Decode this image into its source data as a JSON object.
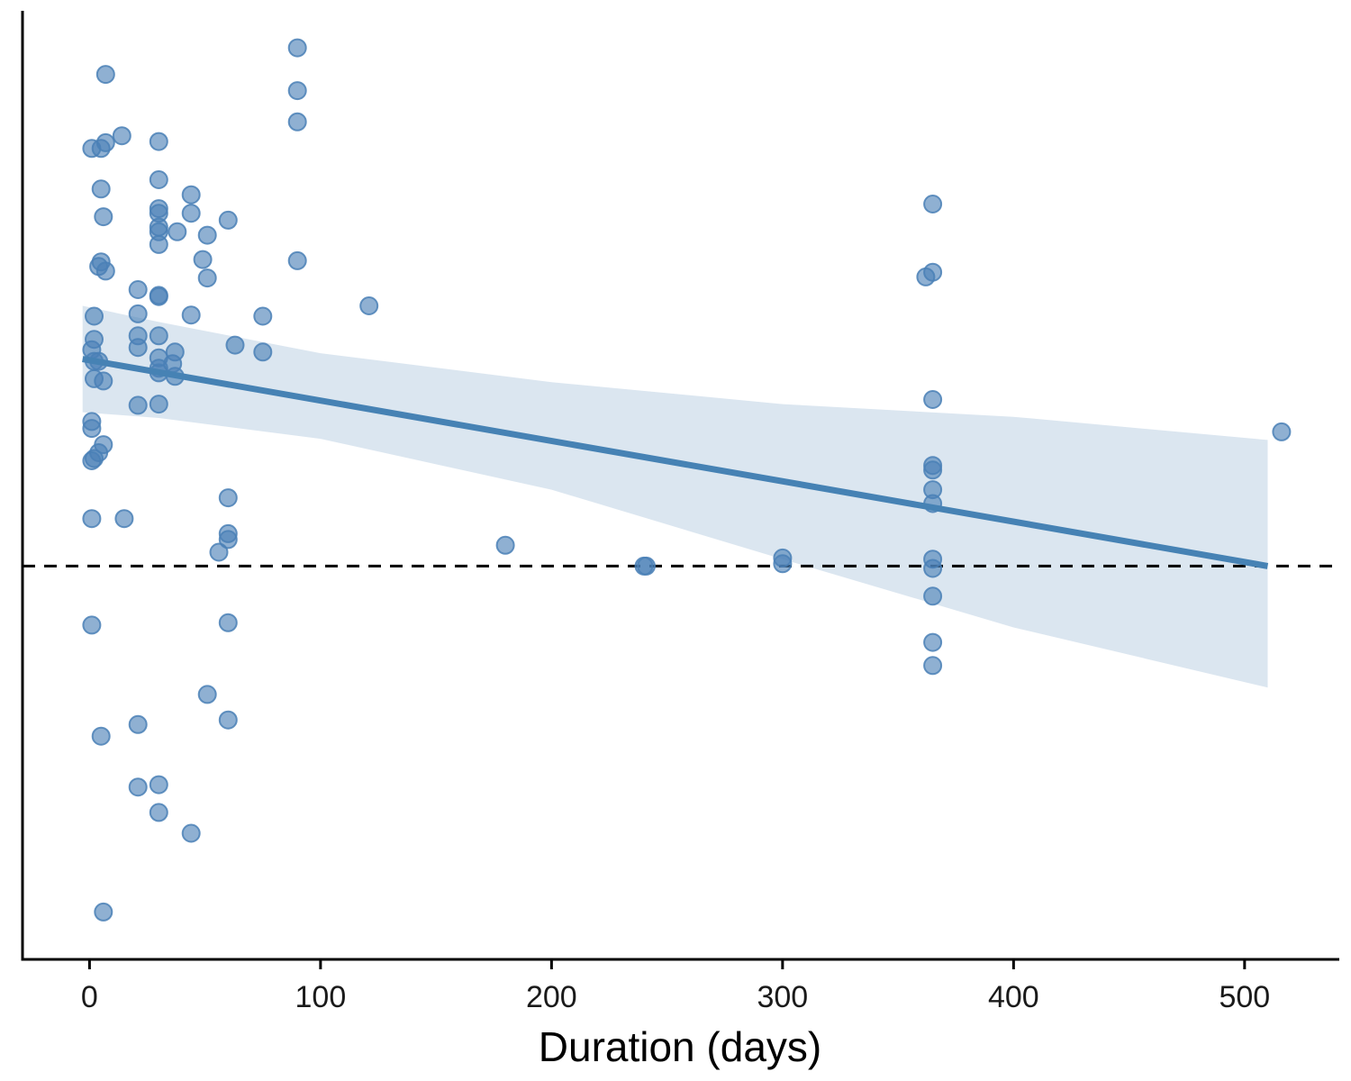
{
  "chart_data": {
    "type": "scatter",
    "xlabel": "Duration (days)",
    "ylabel": "",
    "xlim": [
      -29,
      541
    ],
    "ylim": [
      -1.7,
      2.4
    ],
    "x_ticks": [
      0,
      100,
      200,
      300,
      400,
      500
    ],
    "x_tick_labels": [
      "0",
      "100",
      "200",
      "300",
      "400",
      "500"
    ],
    "y_ticks_shown": false,
    "grid": false,
    "legend": "none",
    "reference_line": {
      "y": 0,
      "style": "dashed",
      "color": "#000000"
    },
    "trend": {
      "method": "linear",
      "x_start": -3,
      "x_end": 510,
      "y_start": 0.895,
      "y_end": 0.0
    },
    "confidence_band": [
      {
        "x": -3,
        "lower": 0.665,
        "upper": 1.125
      },
      {
        "x": 30,
        "lower": 0.64,
        "upper": 1.055
      },
      {
        "x": 100,
        "lower": 0.55,
        "upper": 0.92
      },
      {
        "x": 200,
        "lower": 0.33,
        "upper": 0.795
      },
      {
        "x": 300,
        "lower": 0.03,
        "upper": 0.7
      },
      {
        "x": 400,
        "lower": -0.265,
        "upper": 0.645
      },
      {
        "x": 510,
        "lower": -0.525,
        "upper": 0.545
      }
    ],
    "colors": {
      "points": "#4a80b6",
      "trend": "#4682b4",
      "band": "#dbe6f0",
      "axis": "#000000"
    },
    "points": [
      {
        "x": 7,
        "y": 2.125
      },
      {
        "x": 90,
        "y": 2.24
      },
      {
        "x": 90,
        "y": 2.055
      },
      {
        "x": 90,
        "y": 1.92
      },
      {
        "x": 1,
        "y": 1.805
      },
      {
        "x": 5,
        "y": 1.805
      },
      {
        "x": 7,
        "y": 1.83
      },
      {
        "x": 14,
        "y": 1.86
      },
      {
        "x": 30,
        "y": 1.835
      },
      {
        "x": 30,
        "y": 1.67
      },
      {
        "x": 5,
        "y": 1.63
      },
      {
        "x": 44,
        "y": 1.605
      },
      {
        "x": 6,
        "y": 1.51
      },
      {
        "x": 30,
        "y": 1.545
      },
      {
        "x": 30,
        "y": 1.525
      },
      {
        "x": 44,
        "y": 1.525
      },
      {
        "x": 60,
        "y": 1.495
      },
      {
        "x": 30,
        "y": 1.465
      },
      {
        "x": 30,
        "y": 1.445
      },
      {
        "x": 38,
        "y": 1.445
      },
      {
        "x": 51,
        "y": 1.43
      },
      {
        "x": 30,
        "y": 1.39
      },
      {
        "x": 49,
        "y": 1.325
      },
      {
        "x": 90,
        "y": 1.32
      },
      {
        "x": 5,
        "y": 1.315
      },
      {
        "x": 4,
        "y": 1.295
      },
      {
        "x": 7,
        "y": 1.275
      },
      {
        "x": 51,
        "y": 1.245
      },
      {
        "x": 21,
        "y": 1.195
      },
      {
        "x": 30,
        "y": 1.17
      },
      {
        "x": 30,
        "y": 1.165
      },
      {
        "x": 121,
        "y": 1.125
      },
      {
        "x": 2,
        "y": 1.08
      },
      {
        "x": 21,
        "y": 1.09
      },
      {
        "x": 44,
        "y": 1.085
      },
      {
        "x": 75,
        "y": 1.08
      },
      {
        "x": 2,
        "y": 0.98
      },
      {
        "x": 21,
        "y": 0.995
      },
      {
        "x": 30,
        "y": 0.995
      },
      {
        "x": 63,
        "y": 0.955
      },
      {
        "x": 21,
        "y": 0.945
      },
      {
        "x": 1,
        "y": 0.935
      },
      {
        "x": 37,
        "y": 0.925
      },
      {
        "x": 75,
        "y": 0.925
      },
      {
        "x": 30,
        "y": 0.9
      },
      {
        "x": 2,
        "y": 0.885
      },
      {
        "x": 4,
        "y": 0.885
      },
      {
        "x": 36,
        "y": 0.875
      },
      {
        "x": 30,
        "y": 0.855
      },
      {
        "x": 30,
        "y": 0.835
      },
      {
        "x": 37,
        "y": 0.82
      },
      {
        "x": 2,
        "y": 0.81
      },
      {
        "x": 6,
        "y": 0.8
      },
      {
        "x": 21,
        "y": 0.695
      },
      {
        "x": 30,
        "y": 0.7
      },
      {
        "x": 1,
        "y": 0.625
      },
      {
        "x": 1,
        "y": 0.595
      },
      {
        "x": 6,
        "y": 0.525
      },
      {
        "x": 4,
        "y": 0.49
      },
      {
        "x": 2,
        "y": 0.465
      },
      {
        "x": 1,
        "y": 0.455
      },
      {
        "x": 60,
        "y": 0.295
      },
      {
        "x": 1,
        "y": 0.205
      },
      {
        "x": 15,
        "y": 0.205
      },
      {
        "x": 60,
        "y": 0.14
      },
      {
        "x": 60,
        "y": 0.115
      },
      {
        "x": 56,
        "y": 0.06
      },
      {
        "x": 180,
        "y": 0.09
      },
      {
        "x": 240,
        "y": 0.0
      },
      {
        "x": 241,
        "y": 0.0
      },
      {
        "x": 300,
        "y": 0.035
      },
      {
        "x": 300,
        "y": 0.01
      },
      {
        "x": 365,
        "y": 1.565
      },
      {
        "x": 365,
        "y": 1.27
      },
      {
        "x": 362,
        "y": 1.25
      },
      {
        "x": 365,
        "y": 0.72
      },
      {
        "x": 365,
        "y": 0.435
      },
      {
        "x": 365,
        "y": 0.415
      },
      {
        "x": 365,
        "y": 0.33
      },
      {
        "x": 365,
        "y": 0.27
      },
      {
        "x": 365,
        "y": 0.03
      },
      {
        "x": 365,
        "y": -0.01
      },
      {
        "x": 365,
        "y": -0.13
      },
      {
        "x": 365,
        "y": -0.33
      },
      {
        "x": 365,
        "y": -0.43
      },
      {
        "x": 516,
        "y": 0.58
      },
      {
        "x": 1,
        "y": -0.255
      },
      {
        "x": 60,
        "y": -0.245
      },
      {
        "x": 51,
        "y": -0.555
      },
      {
        "x": 60,
        "y": -0.665
      },
      {
        "x": 21,
        "y": -0.685
      },
      {
        "x": 5,
        "y": -0.735
      },
      {
        "x": 21,
        "y": -0.955
      },
      {
        "x": 30,
        "y": -0.945
      },
      {
        "x": 30,
        "y": -1.065
      },
      {
        "x": 44,
        "y": -1.155
      },
      {
        "x": 6,
        "y": -1.495
      }
    ]
  }
}
